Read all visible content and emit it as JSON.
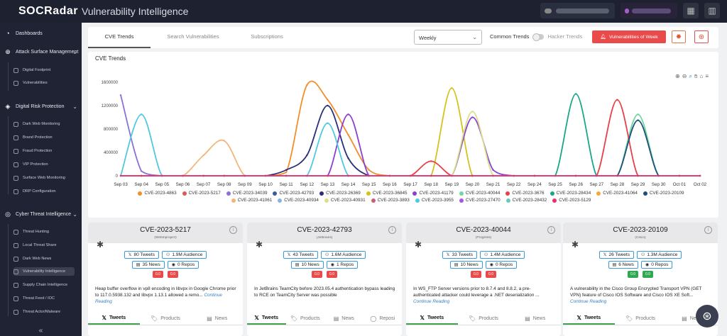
{
  "app": {
    "logo": "SOCRadar",
    "title": "Vulnerability Intelligence"
  },
  "sidebar": {
    "sections": [
      {
        "label": "Dashboards",
        "icon": "dashboard-icon",
        "children": []
      },
      {
        "label": "Attack Surface Management",
        "icon": "target-icon",
        "children": [
          "Digital Footprint",
          "Vulnerabilities"
        ]
      },
      {
        "label": "Digital Risk Protection",
        "icon": "shield-icon",
        "children": [
          "Dark Web Monitoring",
          "Brand Protection",
          "Fraud Protection",
          "VIP Protection",
          "Surface Web Monitoring",
          "DRP Configuration"
        ]
      },
      {
        "label": "Cyber Threat Intelligence",
        "icon": "radar-icon",
        "children": [
          "Threat Hunting",
          "Local Threat Share",
          "Dark Web News",
          "Vulnerability Intelligence",
          "Supply Chain Intelligence",
          "Threat Feed / IOC",
          "Threat Actor/Malware"
        ]
      }
    ],
    "active": "Vulnerability Intelligence",
    "collapse": "«"
  },
  "tabs": [
    "CVE Trends",
    "Search Vulnerabilities",
    "Subscriptions"
  ],
  "period_select": "Weekly",
  "toggle": {
    "left": "Common Trends",
    "right": "Hacker Trends"
  },
  "buttons": {
    "vuln_of_week": "Vulnerabilities of Week"
  },
  "chart_data": {
    "type": "line",
    "title": "CVE Trends",
    "x": [
      "Sep 03",
      "Sep 04",
      "Sep 05",
      "Sep 06",
      "Sep 07",
      "Sep 08",
      "Sep 09",
      "Sep 10",
      "Sep 11",
      "Sep 12",
      "Sep 13",
      "Sep 14",
      "Sep 15",
      "Sep 16",
      "Sep 17",
      "Sep 18",
      "Sep 19",
      "Sep 20",
      "Sep 21",
      "Sep 22",
      "Sep 24",
      "Sep 25",
      "Sep 26",
      "Sep 27",
      "Sep 28",
      "Sep 29",
      "Sep 30",
      "Oct 01",
      "Oct 02"
    ],
    "yticks": [
      "0",
      "400000",
      "800000",
      "1200000",
      "1600000"
    ],
    "ylim": [
      0,
      1600000
    ],
    "series": [
      {
        "name": "CVE-2023-4863",
        "color": "#f28e2b",
        "values": [
          0,
          0,
          0,
          0,
          0,
          0,
          0,
          0,
          60000,
          1550000,
          1300000,
          700000,
          100000,
          0,
          0,
          0,
          0,
          0,
          0,
          0,
          0,
          0,
          0,
          0,
          0,
          0,
          0,
          0,
          0
        ]
      },
      {
        "name": "CVE-2023-5217",
        "color": "#e15759",
        "values": [
          0,
          0,
          0,
          0,
          0,
          0,
          0,
          0,
          0,
          0,
          0,
          0,
          0,
          0,
          0,
          0,
          0,
          0,
          0,
          0,
          0,
          0,
          0,
          0,
          0,
          0,
          0,
          0,
          0
        ]
      },
      {
        "name": "CVE-2023-34039",
        "color": "#8e6fd8",
        "values": [
          1380000,
          80000,
          0,
          0,
          0,
          0,
          0,
          0,
          0,
          0,
          0,
          0,
          0,
          0,
          0,
          0,
          0,
          0,
          0,
          0,
          0,
          0,
          0,
          0,
          0,
          0,
          0,
          0,
          0
        ]
      },
      {
        "name": "CVE-2023-42793",
        "color": "#3d5a9a",
        "values": [
          0,
          0,
          0,
          0,
          0,
          0,
          0,
          0,
          0,
          0,
          0,
          0,
          0,
          0,
          0,
          0,
          0,
          0,
          0,
          0,
          0,
          0,
          0,
          0,
          0,
          0,
          0,
          0,
          0
        ]
      },
      {
        "name": "CVE-2023-26369",
        "color": "#2a2f7a",
        "values": [
          0,
          0,
          0,
          0,
          0,
          0,
          0,
          0,
          100000,
          350000,
          1200000,
          300000,
          0,
          0,
          0,
          0,
          0,
          0,
          0,
          0,
          0,
          0,
          0,
          0,
          0,
          0,
          0,
          0,
          0
        ]
      },
      {
        "name": "CVE-2023-36845",
        "color": "#d4c21f",
        "values": [
          0,
          0,
          0,
          0,
          0,
          0,
          0,
          0,
          0,
          0,
          0,
          0,
          0,
          0,
          0,
          0,
          1500000,
          0,
          0,
          0,
          0,
          0,
          0,
          0,
          0,
          0,
          0,
          0,
          0
        ]
      },
      {
        "name": "CVE-2023-41179",
        "color": "#8b3fd0",
        "values": [
          0,
          0,
          0,
          0,
          0,
          0,
          0,
          0,
          0,
          0,
          0,
          1050000,
          0,
          0,
          0,
          0,
          0,
          1000000,
          100000,
          0,
          0,
          0,
          0,
          0,
          0,
          0,
          0,
          0,
          0
        ]
      },
      {
        "name": "CVE-2023-40044",
        "color": "#6fd8a0",
        "values": [
          0,
          0,
          0,
          0,
          0,
          0,
          0,
          0,
          0,
          0,
          0,
          0,
          0,
          0,
          0,
          0,
          0,
          0,
          0,
          0,
          0,
          0,
          0,
          0,
          0,
          1050000,
          0,
          0,
          0
        ]
      },
      {
        "name": "CVE-2023-3676",
        "color": "#e8404a",
        "values": [
          0,
          0,
          0,
          0,
          0,
          0,
          0,
          0,
          0,
          0,
          0,
          0,
          0,
          0,
          0,
          250000,
          0,
          0,
          0,
          0,
          0,
          0,
          0,
          0,
          1300000,
          0,
          0,
          0,
          0
        ]
      },
      {
        "name": "CVE-2023-28434",
        "color": "#1ba58a",
        "values": [
          0,
          0,
          0,
          0,
          0,
          0,
          0,
          0,
          0,
          0,
          0,
          0,
          0,
          0,
          0,
          0,
          0,
          0,
          0,
          0,
          0,
          0,
          1400000,
          0,
          0,
          0,
          0,
          0,
          0
        ]
      },
      {
        "name": "CVE-2023-41064",
        "color": "#f5a83c",
        "values": [
          0,
          0,
          0,
          0,
          0,
          0,
          0,
          0,
          0,
          0,
          0,
          0,
          0,
          0,
          0,
          0,
          0,
          0,
          0,
          0,
          0,
          0,
          0,
          0,
          0,
          0,
          0,
          0,
          0
        ]
      },
      {
        "name": "CVE-2023-20109",
        "color": "#1f4f7a",
        "values": [
          0,
          0,
          0,
          0,
          0,
          0,
          0,
          0,
          0,
          0,
          0,
          0,
          0,
          0,
          0,
          0,
          0,
          0,
          0,
          0,
          0,
          0,
          0,
          0,
          0,
          950000,
          0,
          0,
          0
        ]
      },
      {
        "name": "CVE-2023-41061",
        "color": "#f2b57a",
        "values": [
          0,
          0,
          0,
          0,
          350000,
          600000,
          0,
          0,
          0,
          0,
          0,
          0,
          0,
          0,
          0,
          0,
          0,
          0,
          0,
          0,
          0,
          0,
          0,
          0,
          0,
          0,
          0,
          0,
          0
        ]
      },
      {
        "name": "CVE-2023-40934",
        "color": "#86b4e0",
        "values": [
          0,
          0,
          0,
          0,
          0,
          0,
          0,
          0,
          0,
          0,
          0,
          0,
          0,
          0,
          0,
          0,
          0,
          0,
          0,
          0,
          0,
          0,
          0,
          0,
          0,
          0,
          0,
          0,
          0
        ]
      },
      {
        "name": "CVE-2023-40931",
        "color": "#d8e08a",
        "values": [
          0,
          0,
          0,
          0,
          0,
          0,
          0,
          0,
          0,
          0,
          0,
          0,
          0,
          0,
          0,
          0,
          0,
          1100000,
          0,
          0,
          0,
          0,
          0,
          0,
          0,
          0,
          0,
          0,
          0
        ]
      },
      {
        "name": "CVE-2023-3893",
        "color": "#d05a7a",
        "values": [
          0,
          0,
          0,
          0,
          0,
          0,
          0,
          0,
          0,
          0,
          0,
          0,
          0,
          0,
          0,
          0,
          0,
          0,
          0,
          0,
          0,
          0,
          0,
          0,
          0,
          0,
          0,
          0,
          0
        ]
      },
      {
        "name": "CVE-2023-3955",
        "color": "#4fc8e0",
        "values": [
          0,
          1050000,
          0,
          0,
          0,
          0,
          0,
          0,
          0,
          0,
          900000,
          0,
          0,
          0,
          0,
          0,
          0,
          0,
          0,
          0,
          0,
          0,
          0,
          0,
          0,
          0,
          0,
          0,
          0
        ]
      },
      {
        "name": "CVE-2023-27470",
        "color": "#a855e0",
        "values": [
          0,
          0,
          0,
          0,
          0,
          0,
          0,
          0,
          0,
          0,
          0,
          0,
          0,
          0,
          0,
          0,
          0,
          0,
          0,
          0,
          0,
          0,
          0,
          0,
          0,
          0,
          0,
          0,
          0
        ]
      },
      {
        "name": "CVE-2023-28432",
        "color": "#6ac8bf",
        "values": [
          0,
          0,
          0,
          0,
          0,
          0,
          0,
          0,
          0,
          0,
          0,
          0,
          0,
          0,
          0,
          0,
          0,
          0,
          0,
          0,
          0,
          0,
          0,
          0,
          0,
          0,
          0,
          0,
          0
        ]
      },
      {
        "name": "CVE-2023-5129",
        "color": "#e8306e",
        "values": [
          0,
          0,
          0,
          0,
          0,
          0,
          0,
          0,
          0,
          0,
          0,
          0,
          0,
          0,
          0,
          0,
          0,
          0,
          0,
          0,
          0,
          0,
          0,
          0,
          0,
          0,
          0,
          0,
          0
        ]
      }
    ]
  },
  "cards": [
    {
      "cve": "CVE-2023-5217",
      "vendor": "(Webmproject)",
      "tweets": "80 Tweets",
      "audience": "1.9M Audience",
      "news": "35 News",
      "repos": "0 Repos",
      "b1": "0.0",
      "b2": "0.0",
      "b1c": "#e94b4b",
      "b2c": "#e94b4b",
      "desc": "Heap buffer overflow in vp8 encoding in libvpx in Google Chrome prior to 117.0.5938.132 and libvpx 1.13.1 allowed a remo...",
      "cont": "Continue Reading",
      "tabs": [
        "Tweets",
        "Products",
        "News"
      ]
    },
    {
      "cve": "CVE-2023-42793",
      "vendor": "(Jetbrains)",
      "tweets": "43 Tweets",
      "audience": "1.6M Audience",
      "news": "10 News",
      "repos": "1 Repos",
      "b1": "0.0",
      "b2": "0.0",
      "b1c": "#e94b4b",
      "b2c": "#e94b4b",
      "desc": "In JetBrains TeamCity before 2023.05.4 authentication bypass leading to RCE on TeamCity Server was possible",
      "cont": "",
      "tabs": [
        "Tweets",
        "Products",
        "News",
        "Reposi"
      ]
    },
    {
      "cve": "CVE-2023-40044",
      "vendor": "(Progress)",
      "tweets": "33 Tweets",
      "audience": "1.4M Audience",
      "news": "10 News",
      "repos": "0 Repos",
      "b1": "0.0",
      "b2": "0.0",
      "b1c": "#e94b4b",
      "b2c": "#e94b4b",
      "desc": "In WS_FTP Server versions prior to 8.7.4 and 8.8.2, a pre-authenticated attacker could leverage a .NET deserialization ...",
      "cont": "Continue Reading",
      "tabs": [
        "Tweets",
        "Products",
        "News"
      ]
    },
    {
      "cve": "CVE-2023-20109",
      "vendor": "(Cisco)",
      "tweets": "26 Tweets",
      "audience": "1.3M Audience",
      "news": "6 News",
      "repos": "0 Repos",
      "b1": "0.0",
      "b2": "0.0",
      "b1c": "#2fa84f",
      "b2c": "#2fa84f",
      "desc": "A vulnerability in the Cisco Group Encrypted Transport VPN (GET VPN) feature of Cisco IOS Software and Cisco IOS XE Soft...",
      "cont": "Continue Reading",
      "tabs": [
        "Tweets",
        "Products",
        "News"
      ]
    }
  ]
}
